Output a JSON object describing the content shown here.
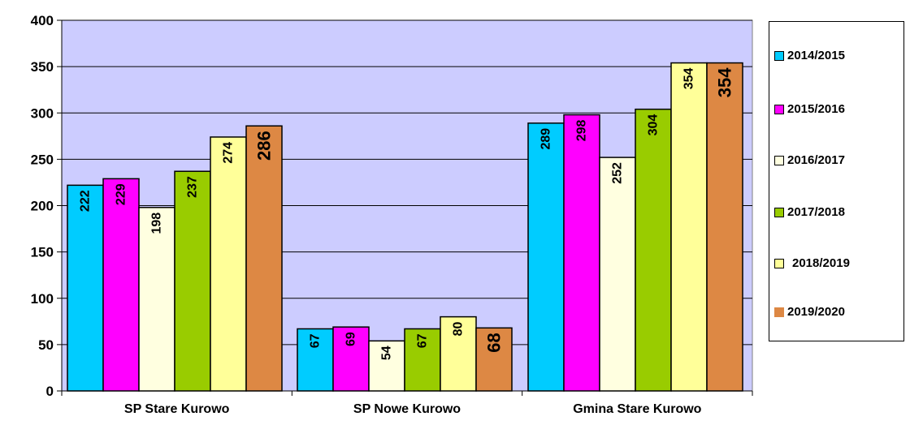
{
  "chart_data": {
    "type": "bar",
    "title": "",
    "xlabel": "",
    "ylabel": "",
    "ylim": [
      0,
      400
    ],
    "yticks": [
      "0",
      "50",
      "100",
      "150",
      "200",
      "250",
      "300",
      "350",
      "400"
    ],
    "categories": [
      "SP Stare Kurowo",
      "SP Nowe Kurowo",
      "Gmina Stare Kurowo"
    ],
    "series": [
      {
        "name": "2014/2015",
        "color": "#00ccff",
        "values": [
          222,
          67,
          289
        ],
        "labels": [
          "222",
          "67",
          "289"
        ]
      },
      {
        "name": "2015/2016",
        "color": "#ff00ff",
        "values": [
          229,
          69,
          298
        ],
        "labels": [
          "229",
          "69",
          "298"
        ]
      },
      {
        "name": "2016/2017",
        "color": "#ffffe0",
        "values": [
          198,
          54,
          252
        ],
        "labels": [
          "198",
          "54",
          "252"
        ]
      },
      {
        "name": "2017/2018",
        "color": "#99cc00",
        "values": [
          237,
          67,
          304
        ],
        "labels": [
          "237",
          "67",
          "304"
        ]
      },
      {
        "name": "2018/2019",
        "color": "#ffff99",
        "values": [
          274,
          80,
          354
        ],
        "labels": [
          "274",
          "80",
          "354"
        ]
      },
      {
        "name": "2019/2020",
        "color": "#dd8844",
        "values": [
          286,
          68,
          354
        ],
        "labels": [
          "286",
          "68",
          "354"
        ]
      }
    ],
    "plot_background": "#ccccff",
    "grid": true,
    "legend_position": "right"
  }
}
